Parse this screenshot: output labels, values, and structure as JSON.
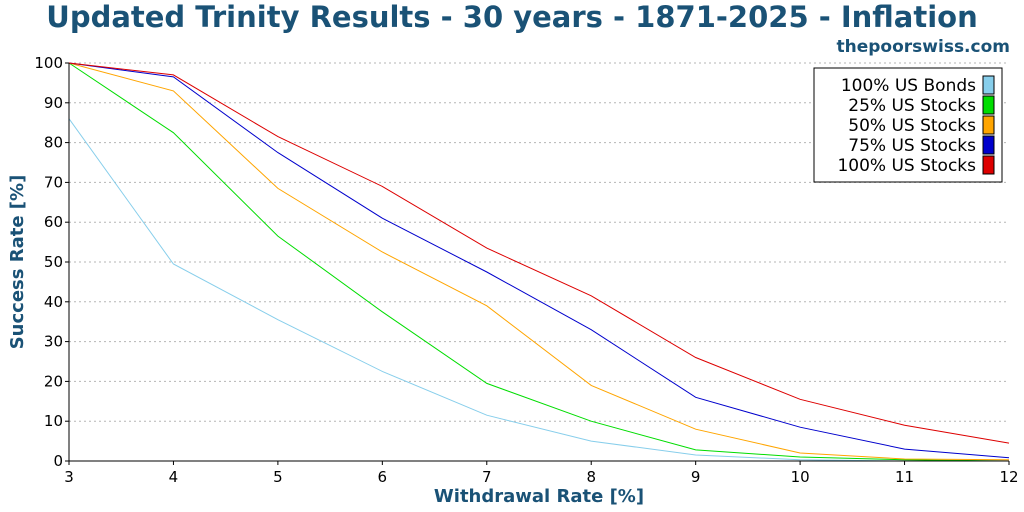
{
  "header": {
    "title": "Updated Trinity Results - 30 years - 1871-2025 - Inflation",
    "site": "thepoorswiss.com"
  },
  "chart_data": {
    "type": "line",
    "title": "Updated Trinity Results - 30 years - 1871-2025 - Inflation",
    "xlabel": "Withdrawal Rate [%]",
    "ylabel": "Success Rate [%]",
    "xlim": [
      3,
      12
    ],
    "ylim": [
      0,
      100
    ],
    "x": [
      3,
      4,
      5,
      6,
      7,
      8,
      9,
      10,
      11,
      12
    ],
    "yticks": [
      0,
      10,
      20,
      30,
      40,
      50,
      60,
      70,
      80,
      90,
      100
    ],
    "grid": "horizontal dotted",
    "legend_position": "top-right",
    "series": [
      {
        "name": "100% US Bonds",
        "color": "#87ceeb",
        "values": [
          86,
          49.5,
          35.5,
          22.5,
          11.5,
          5,
          1.5,
          0.3,
          0,
          0
        ]
      },
      {
        "name": "25% US Stocks",
        "color": "#00dd00",
        "values": [
          100,
          82.5,
          56.5,
          37.5,
          19.5,
          10,
          2.8,
          1,
          0.3,
          0
        ]
      },
      {
        "name": "50% US Stocks",
        "color": "#ffa500",
        "values": [
          100,
          93,
          68.5,
          52.5,
          39,
          19,
          8,
          2,
          0.5,
          0.3
        ]
      },
      {
        "name": "75% US Stocks",
        "color": "#0000cc",
        "values": [
          100,
          96.5,
          77.5,
          61,
          47.5,
          33,
          16,
          8.5,
          3,
          0.8
        ]
      },
      {
        "name": "100% US Stocks",
        "color": "#dd0000",
        "values": [
          100,
          97,
          81.5,
          69,
          53.5,
          41.5,
          26,
          15.5,
          9,
          4.5
        ]
      }
    ]
  }
}
